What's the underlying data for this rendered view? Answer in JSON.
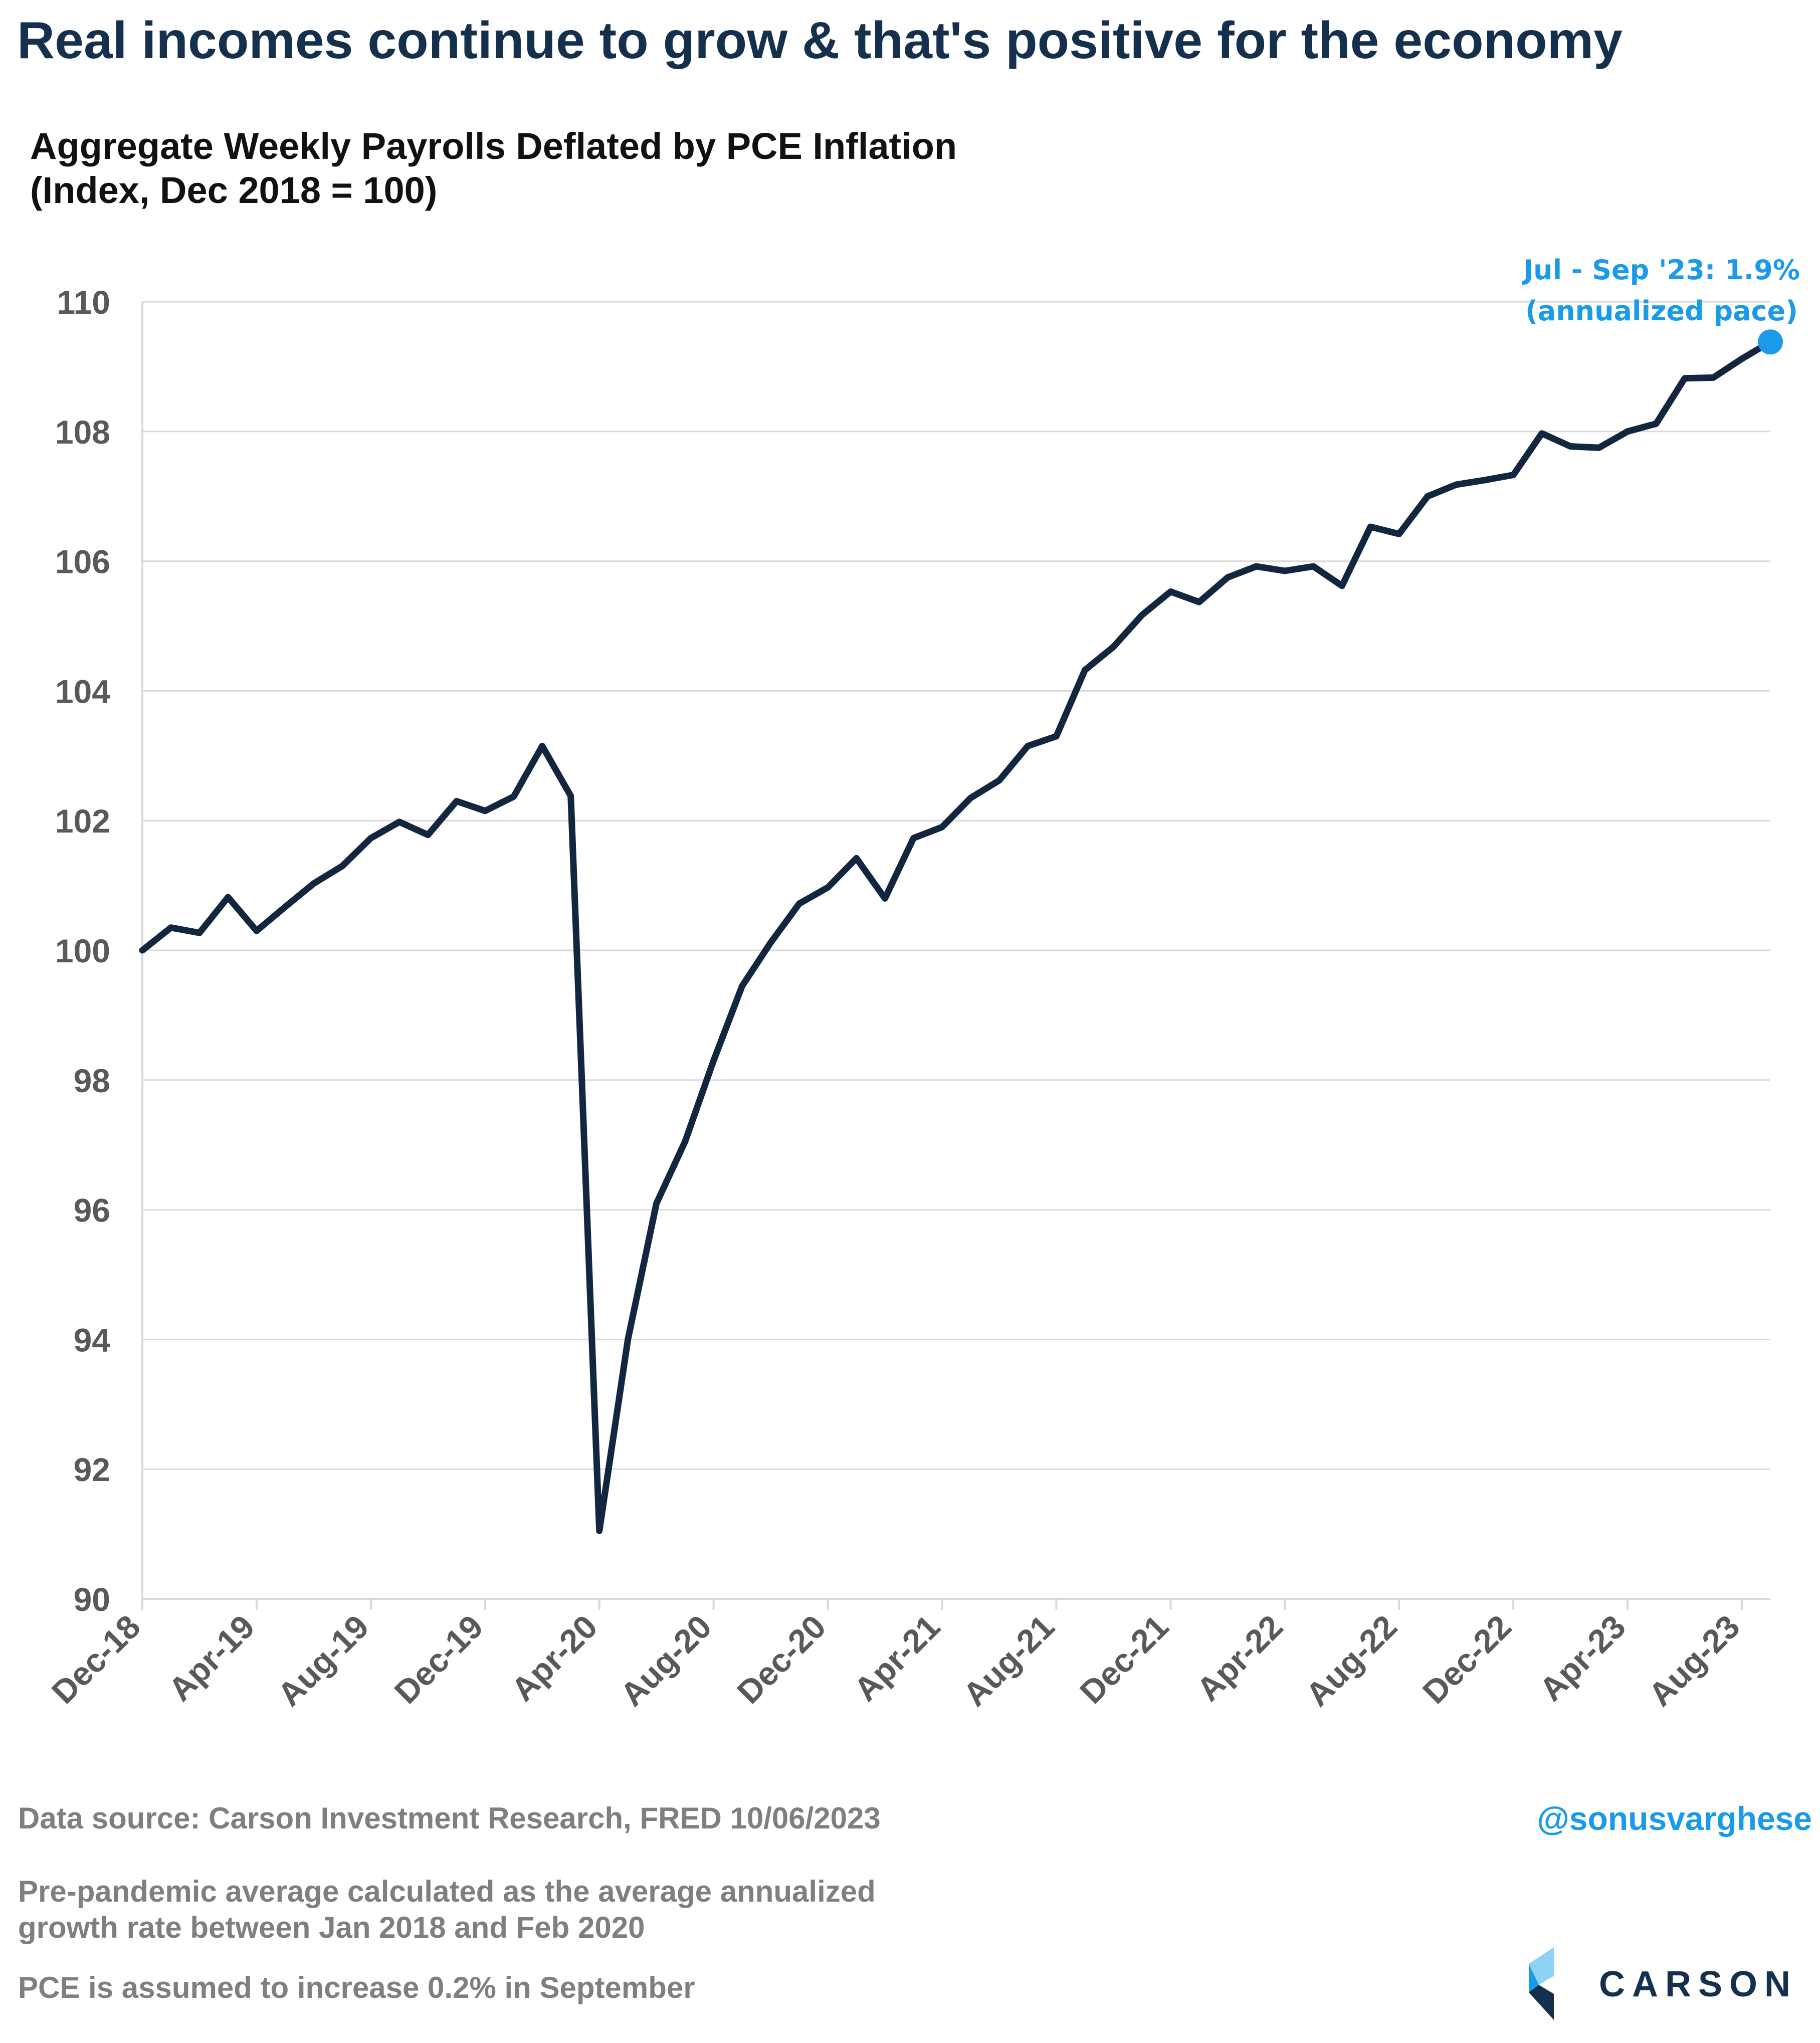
{
  "headline": "Real incomes continue to grow & that's positive for the economy",
  "chart_data": {
    "type": "line",
    "title": "Aggregate Weekly Payrolls Deflated by PCE Inflation",
    "subtitle": "(Index, Dec 2018 = 100)",
    "ylim": [
      90,
      110
    ],
    "y_ticks": [
      90,
      92,
      94,
      96,
      98,
      100,
      102,
      104,
      106,
      108,
      110
    ],
    "x_tick_labels": [
      "Dec-18",
      "Apr-19",
      "Aug-19",
      "Dec-19",
      "Apr-20",
      "Aug-20",
      "Dec-20",
      "Apr-21",
      "Aug-21",
      "Dec-21",
      "Apr-22",
      "Aug-22",
      "Dec-22",
      "Apr-23",
      "Aug-23"
    ],
    "grid": true,
    "line_color": "#12263f",
    "marker_color": "#1a9be9",
    "x": [
      "Dec-18",
      "Jan-19",
      "Feb-19",
      "Mar-19",
      "Apr-19",
      "May-19",
      "Jun-19",
      "Jul-19",
      "Aug-19",
      "Sep-19",
      "Oct-19",
      "Nov-19",
      "Dec-19",
      "Jan-20",
      "Feb-20",
      "Mar-20",
      "Apr-20",
      "May-20",
      "Jun-20",
      "Jul-20",
      "Aug-20",
      "Sep-20",
      "Oct-20",
      "Nov-20",
      "Dec-20",
      "Jan-21",
      "Feb-21",
      "Mar-21",
      "Apr-21",
      "May-21",
      "Jun-21",
      "Jul-21",
      "Aug-21",
      "Sep-21",
      "Oct-21",
      "Nov-21",
      "Dec-21",
      "Jan-22",
      "Feb-22",
      "Mar-22",
      "Apr-22",
      "May-22",
      "Jun-22",
      "Jul-22",
      "Aug-22",
      "Sep-22",
      "Oct-22",
      "Nov-22",
      "Dec-22",
      "Jan-23",
      "Feb-23",
      "Mar-23",
      "Apr-23",
      "May-23",
      "Jun-23",
      "Jul-23",
      "Aug-23",
      "Sep-23"
    ],
    "values": [
      100.0,
      100.35,
      100.27,
      100.82,
      100.3,
      100.67,
      101.03,
      101.3,
      101.73,
      101.98,
      101.78,
      102.3,
      102.15,
      102.37,
      103.15,
      102.38,
      91.05,
      94.0,
      96.1,
      97.05,
      98.3,
      99.45,
      100.12,
      100.72,
      100.97,
      101.42,
      100.8,
      101.73,
      101.9,
      102.35,
      102.62,
      103.15,
      103.3,
      104.32,
      104.68,
      105.17,
      105.53,
      105.37,
      105.75,
      105.92,
      105.85,
      105.92,
      105.62,
      106.53,
      106.42,
      107.0,
      107.18,
      107.25,
      107.33,
      107.97,
      107.77,
      107.75,
      108.0,
      108.12,
      108.82,
      108.83,
      109.12,
      109.38
    ],
    "annotation": {
      "lines": [
        "Jul - Sep '23: 1.9%",
        "(annualized pace)"
      ]
    }
  },
  "footer": {
    "source": "Data source: Carson Investment Research, FRED   10/06/2023",
    "note1_line1": "Pre-pandemic average calculated as the average annualized",
    "note1_line2": "growth rate between Jan 2018 and Feb 2020",
    "note2": "PCE is assumed to increase 0.2% in September",
    "handle": "@sonusvarghese",
    "logo_word": "CARSON"
  }
}
